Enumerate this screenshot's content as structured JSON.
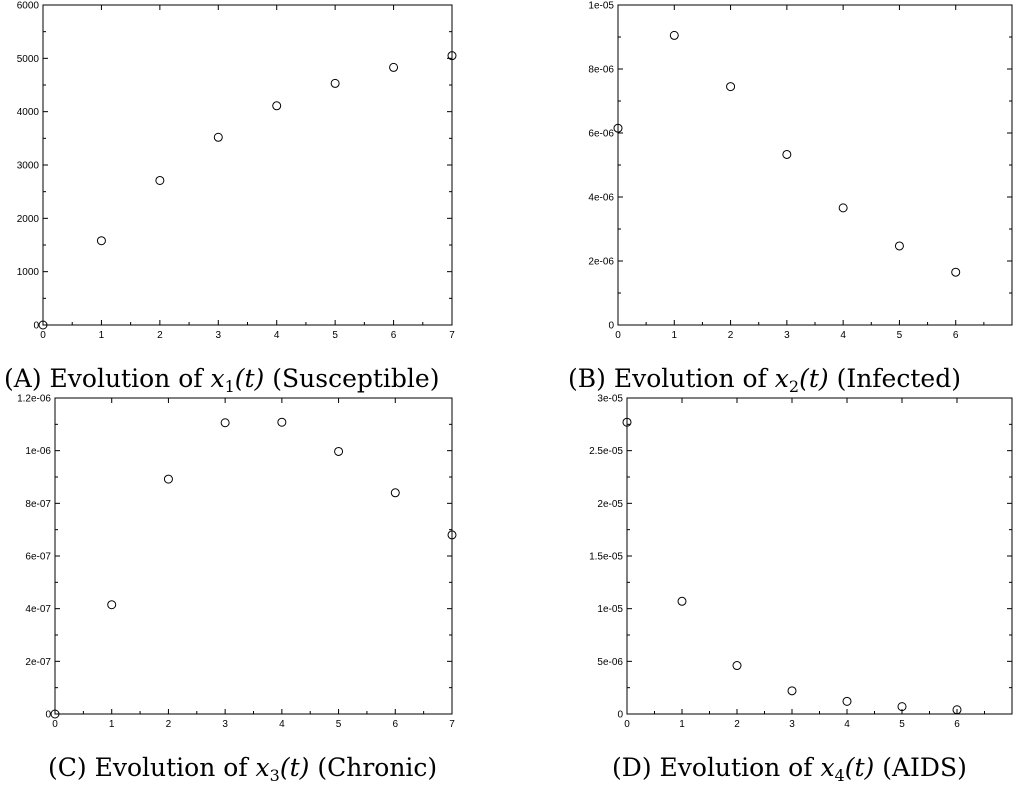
{
  "chart_data": [
    {
      "type": "scatter",
      "caption_letter": "A",
      "caption_prefix": "Evolution of",
      "caption_var": "x",
      "caption_sub": "1",
      "caption_arg": "(t)",
      "caption_suffix": "(Susceptible)",
      "xlim": [
        0,
        7
      ],
      "ylim": [
        0,
        6000
      ],
      "xticks": [
        0,
        1,
        2,
        3,
        4,
        5,
        6,
        7
      ],
      "yticks": [
        0,
        1000,
        2000,
        3000,
        4000,
        5000,
        6000
      ],
      "xtick_labels": [
        "0",
        "1",
        "2",
        "3",
        "4",
        "5",
        "6",
        "7"
      ],
      "ytick_labels": [
        "0",
        "1000",
        "2000",
        "3000",
        "4000",
        "5000",
        "6000"
      ],
      "x": [
        0,
        1,
        2,
        3,
        4,
        5,
        6,
        7
      ],
      "y": [
        0,
        1580,
        2710,
        3520,
        4110,
        4530,
        4830,
        5050
      ],
      "marker": "open-circle",
      "grid": false
    },
    {
      "type": "scatter",
      "caption_letter": "B",
      "caption_prefix": "Evolution of",
      "caption_var": "x",
      "caption_sub": "2",
      "caption_arg": "(t)",
      "caption_suffix": "(Infected)",
      "xlim": [
        0,
        7
      ],
      "ylim": [
        0,
        1e-05
      ],
      "xticks": [
        0,
        1,
        2,
        3,
        4,
        5,
        6
      ],
      "yticks": [
        0,
        2e-06,
        4e-06,
        6e-06,
        8e-06,
        1e-05
      ],
      "xtick_labels": [
        "0",
        "1",
        "2",
        "3",
        "4",
        "5",
        "6"
      ],
      "ytick_labels": [
        "0",
        "2e-06",
        "4e-06",
        "6e-06",
        "8e-06",
        "1e-05"
      ],
      "x": [
        0,
        1,
        2,
        3,
        4,
        5,
        6
      ],
      "y": [
        6.15e-06,
        9.05e-06,
        7.45e-06,
        5.33e-06,
        3.66e-06,
        2.47e-06,
        1.65e-06
      ],
      "marker": "open-circle",
      "grid": false
    },
    {
      "type": "scatter",
      "caption_letter": "C",
      "caption_prefix": "Evolution of",
      "caption_var": "x",
      "caption_sub": "3",
      "caption_arg": "(t)",
      "caption_suffix": "(Chronic)",
      "xlim": [
        0,
        7
      ],
      "ylim": [
        0,
        1.2e-06
      ],
      "xticks": [
        0,
        1,
        2,
        3,
        4,
        5,
        6,
        7
      ],
      "yticks": [
        0,
        2e-07,
        4e-07,
        6e-07,
        8e-07,
        1e-06,
        1.2e-06
      ],
      "xtick_labels": [
        "0",
        "1",
        "2",
        "3",
        "4",
        "5",
        "6",
        "7"
      ],
      "ytick_labels": [
        "0",
        "2e-07",
        "4e-07",
        "6e-07",
        "8e-07",
        "1e-06",
        "1.2e-06"
      ],
      "x": [
        0,
        1,
        2,
        3,
        4,
        5,
        6,
        7
      ],
      "y": [
        0,
        4.15e-07,
        8.92e-07,
        1.106e-06,
        1.108e-06,
        9.97e-07,
        8.4e-07,
        6.8e-07
      ],
      "marker": "open-circle",
      "grid": false
    },
    {
      "type": "scatter",
      "caption_letter": "D",
      "caption_prefix": "Evolution of",
      "caption_var": "x",
      "caption_sub": "4",
      "caption_arg": "(t)",
      "caption_suffix": "(AIDS)",
      "xlim": [
        0,
        7
      ],
      "ylim": [
        0,
        3e-05
      ],
      "xticks": [
        0,
        1,
        2,
        3,
        4,
        5,
        6
      ],
      "yticks": [
        0,
        5e-06,
        1e-05,
        1.5e-05,
        2e-05,
        2.5e-05,
        3e-05
      ],
      "xtick_labels": [
        "0",
        "1",
        "2",
        "3",
        "4",
        "5",
        "6"
      ],
      "ytick_labels": [
        "0",
        "5e-06",
        "1e-05",
        "1.5e-05",
        "2e-05",
        "2.5e-05",
        "3e-05"
      ],
      "x": [
        0,
        1,
        2,
        3,
        4,
        5,
        6
      ],
      "y": [
        2.77e-05,
        1.07e-05,
        4.6e-06,
        2.2e-06,
        1.2e-06,
        7e-07,
        4e-07
      ],
      "marker": "open-circle",
      "grid": false
    }
  ]
}
